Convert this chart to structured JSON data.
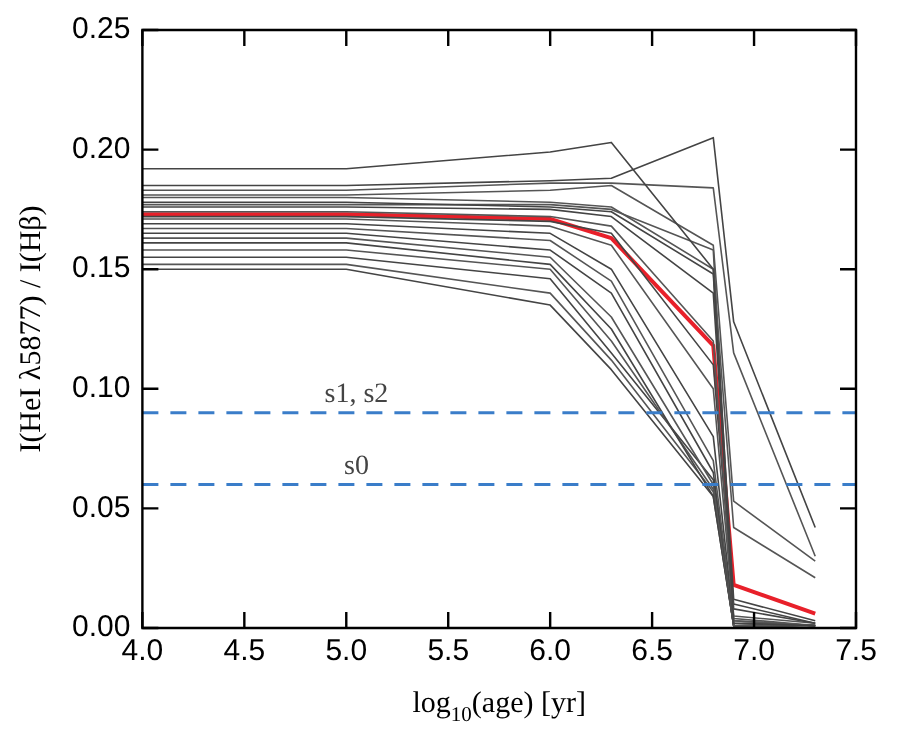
{
  "chart_data": {
    "type": "line",
    "xlabel": "log$_{10}$(age) [yr]",
    "ylabel": "I(HeI λ5877) / I(Hβ)",
    "x": [
      4.0,
      5.0,
      6.0,
      6.3,
      6.8,
      6.9,
      7.3
    ],
    "xlim": [
      4.0,
      7.5
    ],
    "xticks": [
      {
        "value": 4.0,
        "label": "4.0"
      },
      4.5,
      {
        "value": 5.0,
        "label": "5.0"
      },
      5.5,
      {
        "value": 6.0,
        "label": "6.0"
      },
      6.5,
      {
        "value": 7.0,
        "label": "7.0"
      },
      7.5
    ],
    "ylim": [
      0,
      0.25
    ],
    "yticks": [
      {
        "value": 0,
        "label": "0.00"
      },
      0.05,
      {
        "value": 0.1,
        "label": "0.10"
      },
      0.15,
      {
        "value": 0.2,
        "label": "0.20"
      },
      0.25
    ],
    "grid": false,
    "legend": false,
    "marker": "none",
    "line_style": "solid",
    "series": [
      {
        "color": "#444444",
        "values": [
          0.192,
          0.192,
          0.199,
          0.203,
          0.15,
          0.002,
          0.001
        ]
      },
      {
        "color": "#444444",
        "values": [
          0.185,
          0.185,
          0.187,
          0.188,
          0.205,
          0.128,
          0.042
        ]
      },
      {
        "color": "#555555",
        "values": [
          0.183,
          0.183,
          0.186,
          0.186,
          0.184,
          0.115,
          0.03
        ]
      },
      {
        "color": "#555555",
        "values": [
          0.181,
          0.181,
          0.183,
          0.185,
          0.16,
          0.053,
          0.028
        ]
      },
      {
        "color": "#555555",
        "values": [
          0.18,
          0.18,
          0.178,
          0.176,
          0.15,
          0.042,
          0.021
        ]
      },
      {
        "color": "#444444",
        "values": [
          0.178,
          0.178,
          0.176,
          0.174,
          0.148,
          0.012,
          0.003
        ]
      },
      {
        "color": "#555555",
        "values": [
          0.177,
          0.177,
          0.177,
          0.175,
          0.158,
          0.003,
          0.001
        ]
      },
      {
        "color": "#444444",
        "values": [
          0.176,
          0.176,
          0.175,
          0.172,
          0.14,
          0.008,
          0.002
        ]
      },
      {
        "color": "#555555",
        "values": [
          0.174,
          0.174,
          0.172,
          0.168,
          0.12,
          0.005,
          0.002
        ]
      },
      {
        "color": "#444444",
        "values": [
          0.172,
          0.172,
          0.17,
          0.165,
          0.11,
          0.01,
          0.002
        ]
      },
      {
        "color": "#555555",
        "values": [
          0.171,
          0.171,
          0.168,
          0.16,
          0.1,
          0.004,
          0.001
        ]
      },
      {
        "color": "#444444",
        "values": [
          0.169,
          0.169,
          0.165,
          0.15,
          0.08,
          0.003,
          0.001
        ]
      },
      {
        "color": "#555555",
        "values": [
          0.167,
          0.167,
          0.162,
          0.145,
          0.07,
          0.002,
          0.001
        ]
      },
      {
        "color": "#444444",
        "values": [
          0.165,
          0.165,
          0.158,
          0.14,
          0.065,
          0.002,
          0.001
        ]
      },
      {
        "color": "#555555",
        "values": [
          0.163,
          0.163,
          0.155,
          0.13,
          0.06,
          0.001,
          0.001
        ]
      },
      {
        "color": "#444444",
        "values": [
          0.161,
          0.161,
          0.152,
          0.125,
          0.055,
          0.001,
          0.0
        ]
      },
      {
        "color": "#555555",
        "values": [
          0.158,
          0.158,
          0.15,
          0.12,
          0.058,
          0.001,
          0.0
        ]
      },
      {
        "color": "#444444",
        "values": [
          0.155,
          0.155,
          0.146,
          0.115,
          0.062,
          0.001,
          0.0
        ]
      },
      {
        "color": "#555555",
        "values": [
          0.152,
          0.152,
          0.14,
          0.112,
          0.057,
          0.001,
          0.0
        ]
      },
      {
        "color": "#444444",
        "values": [
          0.15,
          0.15,
          0.135,
          0.108,
          0.055,
          0.001,
          0.0
        ]
      },
      {
        "color": "#e8202a",
        "values": [
          0.173,
          0.173,
          0.171,
          0.163,
          0.118,
          0.018,
          0.006
        ]
      }
    ],
    "ref_lines": [
      {
        "axis": "y",
        "value": 0.09,
        "label": "s1, s2",
        "color": "#3a7dc9",
        "line_style": "dashed"
      },
      {
        "axis": "y",
        "value": 0.06,
        "label": "s0",
        "color": "#3a7dc9",
        "line_style": "dashed"
      }
    ]
  }
}
